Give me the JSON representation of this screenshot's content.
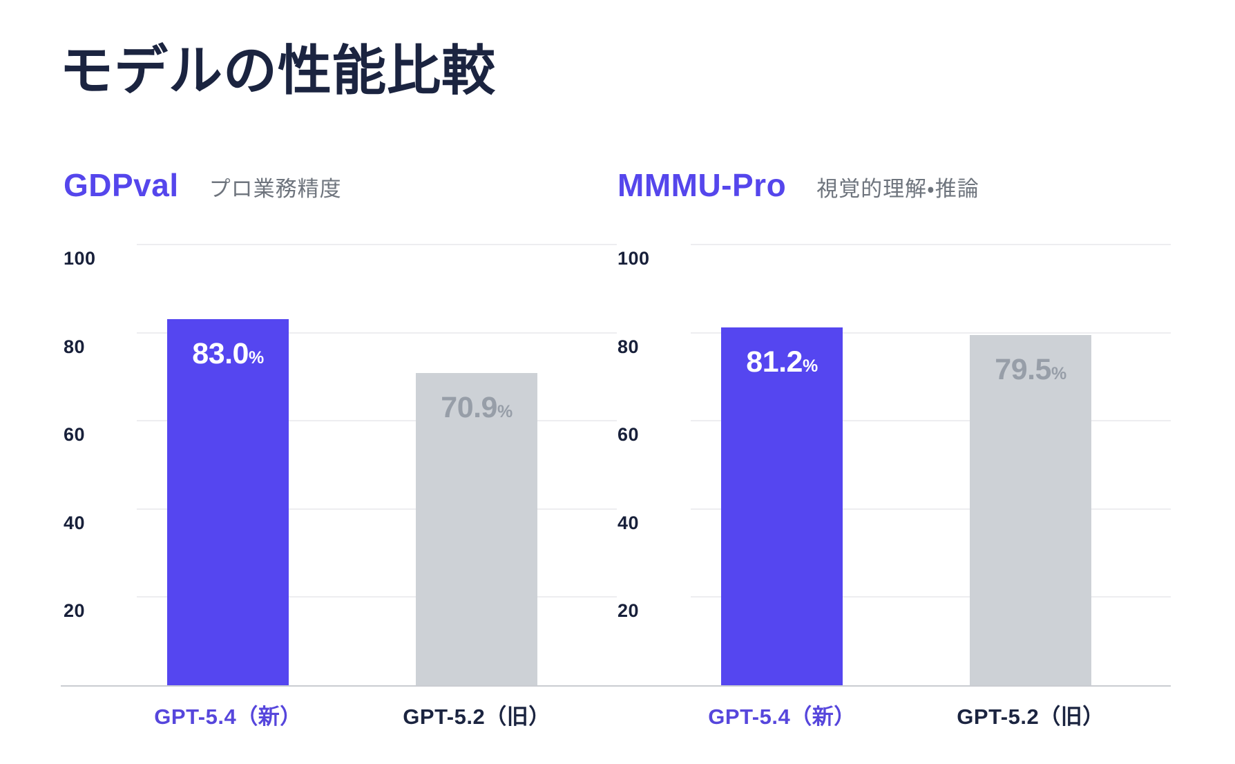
{
  "page": {
    "title": "モデルの性能比較"
  },
  "colors": {
    "accent_purple": "#5546f0",
    "label_purple": "#5646dc",
    "bar_gray": "#cdd1d6",
    "value_gray_text": "#979ea8",
    "navy": "#1b2440",
    "subtitle_gray": "#6e747d",
    "gridline": "#ededf0",
    "baseline": "#c9ccd1"
  },
  "chart_data": [
    {
      "type": "bar",
      "title": "GDPval",
      "subtitle": "プロ業務精度",
      "categories": [
        "GPT-5.4（新）",
        "GPT-5.2（旧）"
      ],
      "values": [
        83.0,
        70.9
      ],
      "value_labels": [
        "83.0",
        "70.9"
      ],
      "unit": "%",
      "ylim": [
        0,
        100
      ],
      "yticks": [
        100,
        80,
        60,
        40,
        20
      ],
      "grid": true,
      "legend": "none",
      "highlight_index": 0
    },
    {
      "type": "bar",
      "title": "MMMU-Pro",
      "subtitle": "視覚的理解・推論",
      "categories": [
        "GPT-5.4（新）",
        "GPT-5.2（旧）"
      ],
      "values": [
        81.2,
        79.5
      ],
      "value_labels": [
        "81.2",
        "79.5"
      ],
      "unit": "%",
      "ylim": [
        0,
        100
      ],
      "yticks": [
        100,
        80,
        60,
        40,
        20
      ],
      "grid": true,
      "legend": "none",
      "highlight_index": 0
    }
  ]
}
